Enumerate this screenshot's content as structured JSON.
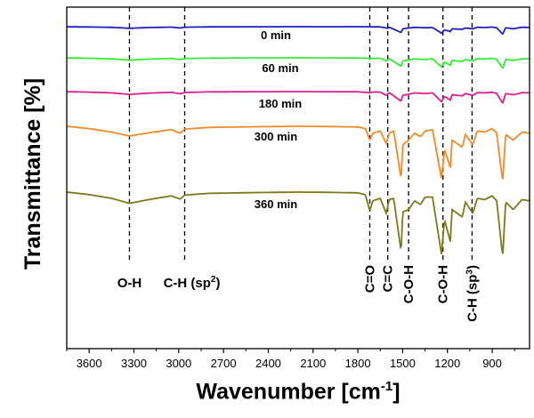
{
  "chart_data": {
    "type": "line",
    "ylabel": "Transmittance [%]",
    "xlabel": "Wavenumber [cm",
    "xlabel_sup": "-1",
    "xlabel_end": "]",
    "x_axis": {
      "reversed": true,
      "xlim": [
        3750,
        650
      ],
      "ticks": [
        3600,
        3300,
        3000,
        2700,
        2400,
        2100,
        1800,
        1500,
        1200,
        900
      ]
    },
    "y_axis": {
      "ticks_shown": false,
      "offset_spectra": true
    },
    "grid": false,
    "legend": "none",
    "series": [
      {
        "name": "0 min",
        "color": "#1f1fbf",
        "points": [
          [
            3750,
            0.01
          ],
          [
            3600,
            0.03
          ],
          [
            3450,
            0.06
          ],
          [
            3330,
            0.15
          ],
          [
            3200,
            0.08
          ],
          [
            3050,
            0.04
          ],
          [
            2990,
            0.12
          ],
          [
            2960,
            0.05
          ],
          [
            2800,
            0.02
          ],
          [
            2500,
            0.01
          ],
          [
            2200,
            0.0
          ],
          [
            2000,
            0.01
          ],
          [
            1800,
            0.0
          ],
          [
            1650,
            0.02
          ],
          [
            1600,
            0.15
          ],
          [
            1590,
            0.05
          ],
          [
            1510,
            0.55
          ],
          [
            1500,
            0.2
          ],
          [
            1460,
            0.12
          ],
          [
            1415,
            0.06
          ],
          [
            1350,
            0.1
          ],
          [
            1300,
            0.08
          ],
          [
            1240,
            0.6
          ],
          [
            1220,
            0.3
          ],
          [
            1180,
            0.45
          ],
          [
            1170,
            0.2
          ],
          [
            1100,
            0.25
          ],
          [
            1080,
            0.12
          ],
          [
            1030,
            0.2
          ],
          [
            1000,
            0.05
          ],
          [
            950,
            0.08
          ],
          [
            900,
            0.04
          ],
          [
            870,
            0.1
          ],
          [
            830,
            0.7
          ],
          [
            810,
            0.1
          ],
          [
            760,
            0.2
          ],
          [
            700,
            0.05
          ],
          [
            650,
            0.08
          ]
        ]
      },
      {
        "name": "60 min",
        "color": "#33ee33",
        "points": [
          [
            3750,
            0.01
          ],
          [
            3600,
            0.04
          ],
          [
            3450,
            0.1
          ],
          [
            3330,
            0.22
          ],
          [
            3200,
            0.12
          ],
          [
            3050,
            0.06
          ],
          [
            2990,
            0.16
          ],
          [
            2960,
            0.06
          ],
          [
            2800,
            0.03
          ],
          [
            2500,
            0.01
          ],
          [
            2200,
            0.0
          ],
          [
            2000,
            0.01
          ],
          [
            1800,
            0.02
          ],
          [
            1700,
            0.06
          ],
          [
            1650,
            0.04
          ],
          [
            1610,
            0.3
          ],
          [
            1590,
            0.08
          ],
          [
            1510,
            0.8
          ],
          [
            1500,
            0.3
          ],
          [
            1460,
            0.2
          ],
          [
            1420,
            0.1
          ],
          [
            1350,
            0.15
          ],
          [
            1300,
            0.1
          ],
          [
            1240,
            0.85
          ],
          [
            1220,
            0.4
          ],
          [
            1180,
            0.7
          ],
          [
            1170,
            0.25
          ],
          [
            1100,
            0.35
          ],
          [
            1080,
            0.15
          ],
          [
            1030,
            0.3
          ],
          [
            1000,
            0.08
          ],
          [
            950,
            0.1
          ],
          [
            900,
            0.05
          ],
          [
            870,
            0.15
          ],
          [
            830,
            1.0
          ],
          [
            810,
            0.15
          ],
          [
            760,
            0.25
          ],
          [
            700,
            0.08
          ],
          [
            650,
            0.1
          ]
        ]
      },
      {
        "name": "180 min",
        "color": "#dd1e8c",
        "points": [
          [
            3750,
            0.01
          ],
          [
            3600,
            0.05
          ],
          [
            3450,
            0.12
          ],
          [
            3330,
            0.26
          ],
          [
            3200,
            0.14
          ],
          [
            3050,
            0.07
          ],
          [
            2990,
            0.2
          ],
          [
            2960,
            0.08
          ],
          [
            2800,
            0.03
          ],
          [
            2500,
            0.01
          ],
          [
            2200,
            0.0
          ],
          [
            2000,
            0.01
          ],
          [
            1800,
            0.02
          ],
          [
            1720,
            0.1
          ],
          [
            1700,
            0.04
          ],
          [
            1650,
            0.05
          ],
          [
            1610,
            0.35
          ],
          [
            1590,
            0.1
          ],
          [
            1510,
            0.9
          ],
          [
            1500,
            0.35
          ],
          [
            1460,
            0.25
          ],
          [
            1420,
            0.12
          ],
          [
            1350,
            0.18
          ],
          [
            1300,
            0.12
          ],
          [
            1240,
            0.95
          ],
          [
            1220,
            0.45
          ],
          [
            1180,
            0.8
          ],
          [
            1170,
            0.3
          ],
          [
            1100,
            0.4
          ],
          [
            1080,
            0.18
          ],
          [
            1030,
            0.35
          ],
          [
            1000,
            0.1
          ],
          [
            950,
            0.12
          ],
          [
            900,
            0.06
          ],
          [
            870,
            0.18
          ],
          [
            830,
            1.1
          ],
          [
            810,
            0.18
          ],
          [
            760,
            0.3
          ],
          [
            700,
            0.1
          ],
          [
            650,
            0.12
          ]
        ]
      },
      {
        "name": "300 min",
        "color": "#f28a2a",
        "points": [
          [
            3750,
            0.0
          ],
          [
            3600,
            0.1
          ],
          [
            3450,
            0.25
          ],
          [
            3330,
            0.42
          ],
          [
            3200,
            0.28
          ],
          [
            3050,
            0.14
          ],
          [
            2990,
            0.3
          ],
          [
            2960,
            0.12
          ],
          [
            2800,
            0.05
          ],
          [
            2500,
            0.02
          ],
          [
            2200,
            0.0
          ],
          [
            2000,
            0.01
          ],
          [
            1800,
            0.03
          ],
          [
            1750,
            0.1
          ],
          [
            1720,
            0.6
          ],
          [
            1700,
            0.3
          ],
          [
            1650,
            0.2
          ],
          [
            1610,
            0.75
          ],
          [
            1590,
            0.3
          ],
          [
            1560,
            0.2
          ],
          [
            1510,
            2.3
          ],
          [
            1500,
            0.8
          ],
          [
            1460,
            0.6
          ],
          [
            1420,
            0.3
          ],
          [
            1380,
            0.45
          ],
          [
            1350,
            0.2
          ],
          [
            1300,
            0.15
          ],
          [
            1240,
            2.25
          ],
          [
            1220,
            1.0
          ],
          [
            1180,
            1.8
          ],
          [
            1170,
            0.6
          ],
          [
            1100,
            0.9
          ],
          [
            1080,
            0.35
          ],
          [
            1030,
            0.8
          ],
          [
            1000,
            0.2
          ],
          [
            950,
            0.25
          ],
          [
            900,
            0.1
          ],
          [
            870,
            0.3
          ],
          [
            830,
            2.4
          ],
          [
            810,
            0.35
          ],
          [
            760,
            0.6
          ],
          [
            700,
            0.25
          ],
          [
            650,
            0.3
          ]
        ]
      },
      {
        "name": "360 min",
        "color": "#7a7a1a",
        "points": [
          [
            3750,
            0.0
          ],
          [
            3600,
            0.1
          ],
          [
            3450,
            0.25
          ],
          [
            3330,
            0.45
          ],
          [
            3200,
            0.3
          ],
          [
            3050,
            0.15
          ],
          [
            2990,
            0.28
          ],
          [
            2960,
            0.12
          ],
          [
            2800,
            0.05
          ],
          [
            2500,
            0.02
          ],
          [
            2200,
            0.0
          ],
          [
            2000,
            0.01
          ],
          [
            1800,
            0.03
          ],
          [
            1750,
            0.1
          ],
          [
            1720,
            0.75
          ],
          [
            1700,
            0.35
          ],
          [
            1650,
            0.25
          ],
          [
            1610,
            0.85
          ],
          [
            1590,
            0.3
          ],
          [
            1560,
            0.25
          ],
          [
            1510,
            2.4
          ],
          [
            1500,
            0.8
          ],
          [
            1460,
            0.7
          ],
          [
            1420,
            0.35
          ],
          [
            1380,
            0.5
          ],
          [
            1350,
            0.2
          ],
          [
            1300,
            0.2
          ],
          [
            1240,
            2.5
          ],
          [
            1220,
            1.1
          ],
          [
            1180,
            2.0
          ],
          [
            1170,
            0.7
          ],
          [
            1100,
            1.0
          ],
          [
            1080,
            0.4
          ],
          [
            1030,
            0.85
          ],
          [
            1000,
            0.25
          ],
          [
            950,
            0.3
          ],
          [
            900,
            0.15
          ],
          [
            870,
            0.35
          ],
          [
            830,
            2.6
          ],
          [
            810,
            0.4
          ],
          [
            760,
            0.7
          ],
          [
            700,
            0.3
          ],
          [
            650,
            0.35
          ]
        ]
      }
    ],
    "reference_lines": [
      3330,
      2960,
      1720,
      1600,
      1460,
      1230,
      1035
    ],
    "band_labels": [
      "O-H",
      "C-H (sp",
      "2",
      ")",
      "C=O",
      "C=C",
      "C-O-H",
      "C-O-H",
      "C-H (sp",
      "3",
      ")"
    ]
  }
}
